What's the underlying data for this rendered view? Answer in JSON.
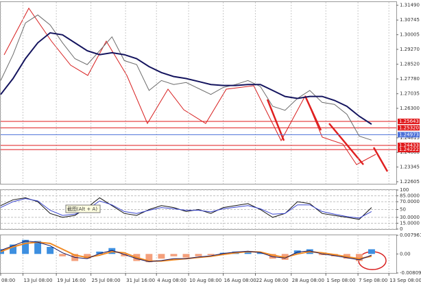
{
  "chart_data": [
    {
      "type": "line",
      "xlim": [
        0,
        32
      ],
      "ylim": [
        1.225,
        1.3165
      ],
      "yticks": [
        {
          "value": 1.3149,
          "label": "1.31490"
        },
        1.30745,
        1.30005,
        {
          "value": 1.2927,
          "label": "1.29270"
        },
        {
          "value": 1.2852,
          "label": "1.28520"
        },
        {
          "value": 1.2778,
          "label": "1.27780"
        },
        1.27035,
        {
          "value": 1.263,
          "label": "1.26300"
        },
        1.24815,
        {
          "value": 1.2408,
          "label": "1.24080"
        },
        1.23345,
        1.22605
      ],
      "levels": [
        {
          "value": 1.25643,
          "label": "1.25643",
          "color": "#e0191b"
        },
        {
          "value": 1.2532,
          "label": "1.25320",
          "color": "#e0191b"
        },
        {
          "value": 1.24973,
          "label": "1.24973",
          "color": "#4a6fd8"
        },
        {
          "value": 1.24433,
          "label": "1.24433",
          "color": "#e0191b"
        },
        {
          "value": 1.24222,
          "label": "1.24222",
          "color": "#e0191b"
        }
      ],
      "series": [
        {
          "color": "#6b6b6b",
          "values": [
            1.277,
            1.29,
            1.306,
            1.31,
            1.305,
            1.296,
            1.288,
            1.285,
            1.292,
            1.299,
            1.287,
            1.285,
            1.272,
            1.277,
            1.275,
            1.276,
            1.273,
            1.27,
            1.2735,
            1.275,
            1.277,
            1.274,
            1.264,
            1.262,
            1.268,
            1.272,
            1.266,
            1.265,
            1.26,
            1.249,
            1.247
          ]
        },
        {
          "color": "#14145e",
          "values": [
            1.27,
            1.278,
            1.288,
            1.296,
            1.301,
            1.3,
            1.296,
            1.292,
            1.29,
            1.291,
            1.29,
            1.288,
            1.284,
            1.281,
            1.279,
            1.278,
            1.2765,
            1.275,
            1.2745,
            1.2745,
            1.275,
            1.275,
            1.272,
            1.269,
            1.268,
            1.269,
            1.269,
            1.267,
            1.264,
            1.259,
            1.255
          ]
        }
      ]
    },
    {
      "type": "line",
      "xlim": [
        0,
        32
      ],
      "ylim": [
        0,
        100
      ],
      "grid": true,
      "yticks": [
        100,
        {
          "value": 85,
          "label": "85.0000"
        },
        {
          "value": 70,
          "label": "70.0000"
        },
        50,
        {
          "value": 30,
          "label": "30.0000"
        },
        {
          "value": 15,
          "label": "15.0000"
        },
        0
      ],
      "tooltip": "截图(Alt + A)",
      "series": [
        {
          "color": "#111111",
          "values": [
            60,
            75,
            80,
            70,
            40,
            30,
            35,
            55,
            80,
            60,
            40,
            35,
            50,
            60,
            55,
            45,
            50,
            40,
            55,
            60,
            65,
            50,
            30,
            40,
            70,
            65,
            40,
            35,
            30,
            25,
            55
          ]
        },
        {
          "color": "#3a46d0",
          "values": [
            55,
            70,
            78,
            72,
            48,
            35,
            38,
            50,
            72,
            62,
            45,
            40,
            48,
            55,
            52,
            48,
            48,
            44,
            52,
            56,
            60,
            52,
            38,
            40,
            62,
            62,
            45,
            38,
            32,
            28,
            45
          ]
        }
      ]
    },
    {
      "type": "macd",
      "xlim": [
        0,
        32
      ],
      "ylim": [
        -0.0080917,
        0.0079618
      ],
      "yticks": [
        0.0079618,
        {
          "value": 0,
          "label": "0.00"
        },
        -0.0080917
      ],
      "xticks": [
        {
          "value": 0,
          "label": "08:00"
        },
        {
          "value": 1.8,
          "label": "13 Jul 08:00"
        },
        {
          "value": 4.5,
          "label": "19 Jul 16:00"
        },
        {
          "value": 7.3,
          "label": "25 Jul 08:00"
        },
        {
          "value": 10.1,
          "label": "31 Jul 16:00"
        },
        {
          "value": 12.6,
          "label": "4 Aug 08:00"
        },
        {
          "value": 15.2,
          "label": "10 Aug 08:00"
        },
        {
          "value": 18,
          "label": "16 Aug 08:00"
        },
        {
          "value": 20.6,
          "label": "22 Aug 08:00"
        },
        {
          "value": 23.5,
          "label": "28 Aug 08:00"
        },
        {
          "value": 26.3,
          "label": "1 Sep 08:00"
        },
        {
          "value": 28.9,
          "label": "7 Sep 08:00"
        },
        {
          "value": 31.4,
          "label": "13 Sep 08:00"
        }
      ],
      "series": [
        {
          "type": "bar",
          "color": "#3d8fe0",
          "negative_color": "#f4a07c",
          "values": [
            0.002,
            0.004,
            0.006,
            0.0055,
            0.003,
            -0.001,
            -0.003,
            -0.002,
            0.001,
            0.0025,
            -0.001,
            -0.003,
            -0.0035,
            -0.002,
            -0.001,
            -0.0015,
            -0.001,
            -0.0005,
            0.0005,
            0.001,
            0.0012,
            0.0005,
            -0.002,
            -0.0025,
            0.0015,
            0.002,
            -0.0005,
            -0.001,
            -0.002,
            -0.003,
            0.002
          ]
        },
        {
          "type": "line",
          "color": "#f08a24",
          "values": [
            0.001,
            0.003,
            0.0045,
            0.005,
            0.0045,
            0.002,
            -0.0005,
            -0.0015,
            -0.0005,
            0.001,
            0.0005,
            -0.0015,
            -0.003,
            -0.003,
            -0.0025,
            -0.002,
            -0.0015,
            -0.001,
            -0.0002,
            0.0005,
            0.001,
            0.0008,
            -0.0005,
            -0.0015,
            0,
            0.001,
            0.0005,
            -0.0003,
            -0.0012,
            -0.002,
            -0.001
          ]
        },
        {
          "type": "line",
          "color": "#14145e",
          "values": [
            0.0015,
            0.0035,
            0.0055,
            0.005,
            0.0035,
            0.0005,
            -0.0015,
            -0.002,
            0.0002,
            0.0015,
            -0.0002,
            -0.002,
            -0.0033,
            -0.0028,
            -0.002,
            -0.002,
            -0.0013,
            -0.0008,
            0.0002,
            0.0008,
            0.0012,
            0.0006,
            -0.0012,
            -0.0018,
            0.0008,
            0.0013,
            0,
            -0.0007,
            -0.0016,
            -0.0025,
            -0.0005
          ]
        }
      ]
    }
  ]
}
